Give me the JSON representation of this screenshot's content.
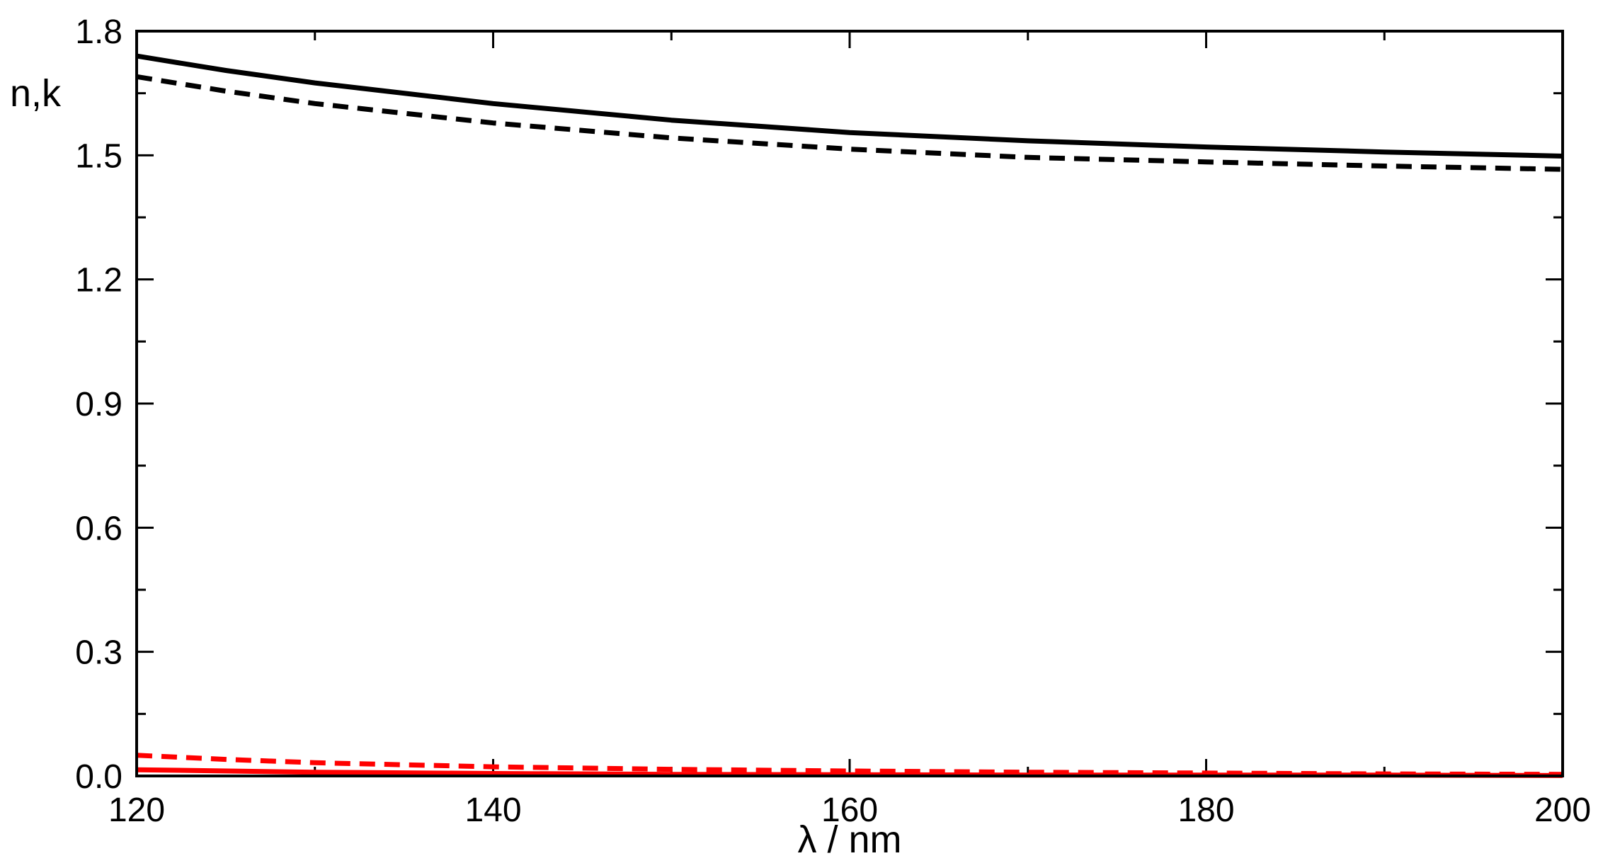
{
  "chart_data": {
    "type": "line",
    "title": "",
    "xlabel": "λ / nm",
    "ylabel": "n,k",
    "xlim": [
      120,
      200
    ],
    "ylim": [
      0.0,
      1.8
    ],
    "x_ticks": [
      "120",
      "140",
      "160",
      "180",
      "200"
    ],
    "y_ticks": [
      "0.0",
      "0.3",
      "0.6",
      "0.9",
      "1.2",
      "1.5",
      "1.8"
    ],
    "grid": false,
    "legend": "none",
    "series": [
      {
        "color": "#000000",
        "style": "solid",
        "x": [
          120,
          125,
          130,
          140,
          150,
          160,
          170,
          180,
          190,
          200
        ],
        "y": [
          1.74,
          1.705,
          1.675,
          1.625,
          1.585,
          1.555,
          1.535,
          1.52,
          1.508,
          1.498
        ]
      },
      {
        "color": "#000000",
        "style": "dashed",
        "x": [
          120,
          125,
          130,
          140,
          150,
          160,
          170,
          180,
          190,
          200
        ],
        "y": [
          1.69,
          1.655,
          1.625,
          1.578,
          1.542,
          1.515,
          1.495,
          1.484,
          1.474,
          1.466
        ]
      },
      {
        "color": "#ff0000",
        "style": "solid",
        "x": [
          120,
          130,
          140,
          150,
          160,
          170,
          180,
          190,
          200
        ],
        "y": [
          0.015,
          0.009,
          0.006,
          0.004,
          0.003,
          0.002,
          0.002,
          0.002,
          0.001
        ]
      },
      {
        "color": "#ff0000",
        "style": "dashed",
        "x": [
          120,
          125,
          130,
          140,
          150,
          160,
          170,
          180,
          190,
          200
        ],
        "y": [
          0.05,
          0.04,
          0.032,
          0.022,
          0.016,
          0.012,
          0.009,
          0.007,
          0.005,
          0.004
        ]
      }
    ]
  }
}
